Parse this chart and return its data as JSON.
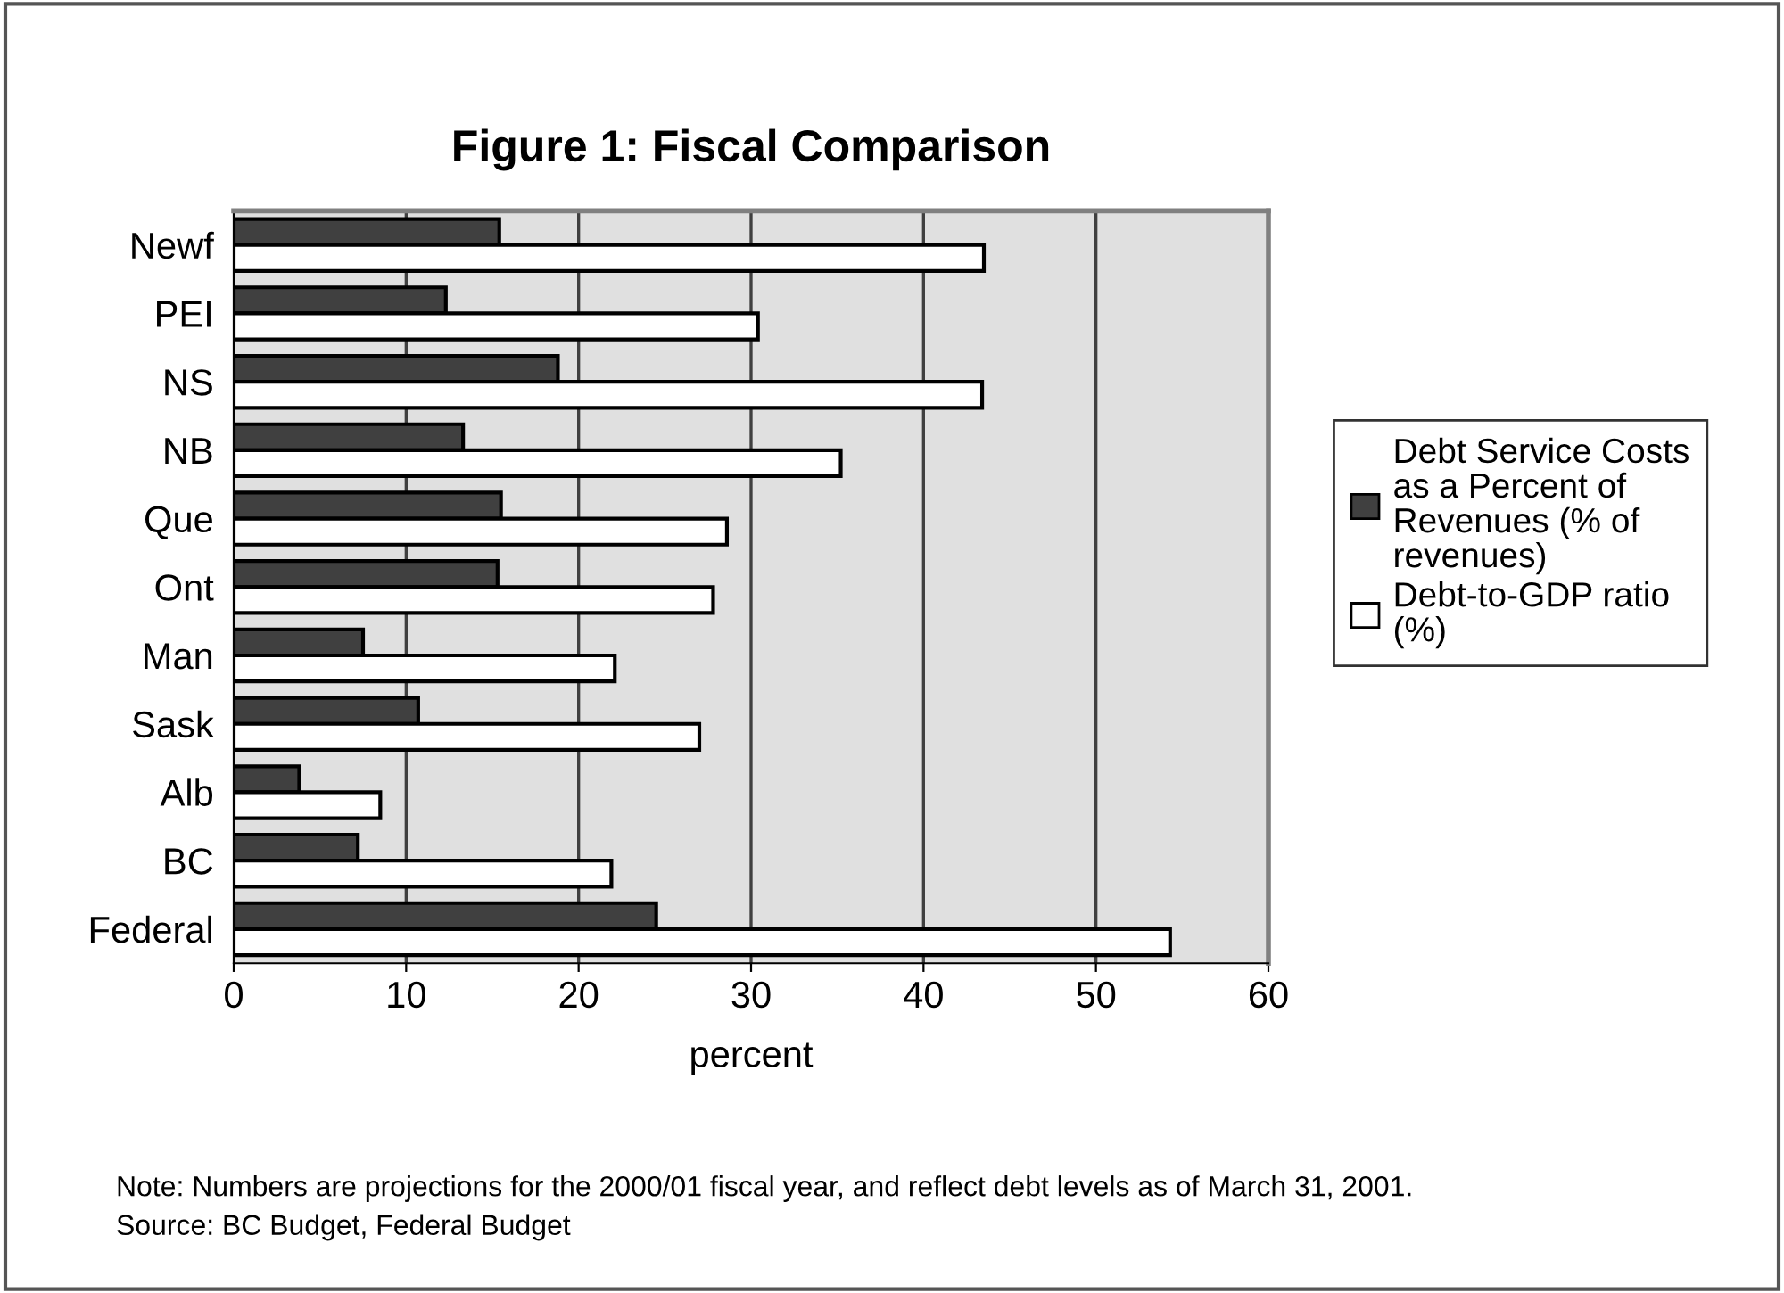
{
  "chart_data": {
    "type": "bar",
    "orientation": "horizontal",
    "title": "Figure 1: Fiscal Comparison",
    "xlabel": "percent",
    "categories": [
      "Newf",
      "PEI",
      "NS",
      "NB",
      "Que",
      "Ont",
      "Man",
      "Sask",
      "Alb",
      "BC",
      "Federal"
    ],
    "series": [
      {
        "name": "Debt Service Costs as a Percent of Revenues (% of revenues)",
        "color": "#404040",
        "values": [
          15.4,
          12.3,
          18.8,
          13.3,
          15.5,
          15.3,
          7.5,
          10.7,
          3.8,
          7.2,
          24.5
        ]
      },
      {
        "name": "Debt-to-GDP ratio (%)",
        "color": "#ffffff",
        "values": [
          43.5,
          30.4,
          43.4,
          35.2,
          28.6,
          27.8,
          22.1,
          27.0,
          8.5,
          21.9,
          54.3
        ]
      }
    ],
    "xlim": [
      0,
      60
    ],
    "xticks": [
      0,
      10,
      20,
      30,
      40,
      50,
      60
    ],
    "grid": "x",
    "legend": "right",
    "annotations": [
      "Note: Numbers are projections for the 2000/01 fiscal year, and reflect debt levels as of March 31, 2001.",
      "Source: BC Budget, Federal Budget"
    ]
  }
}
